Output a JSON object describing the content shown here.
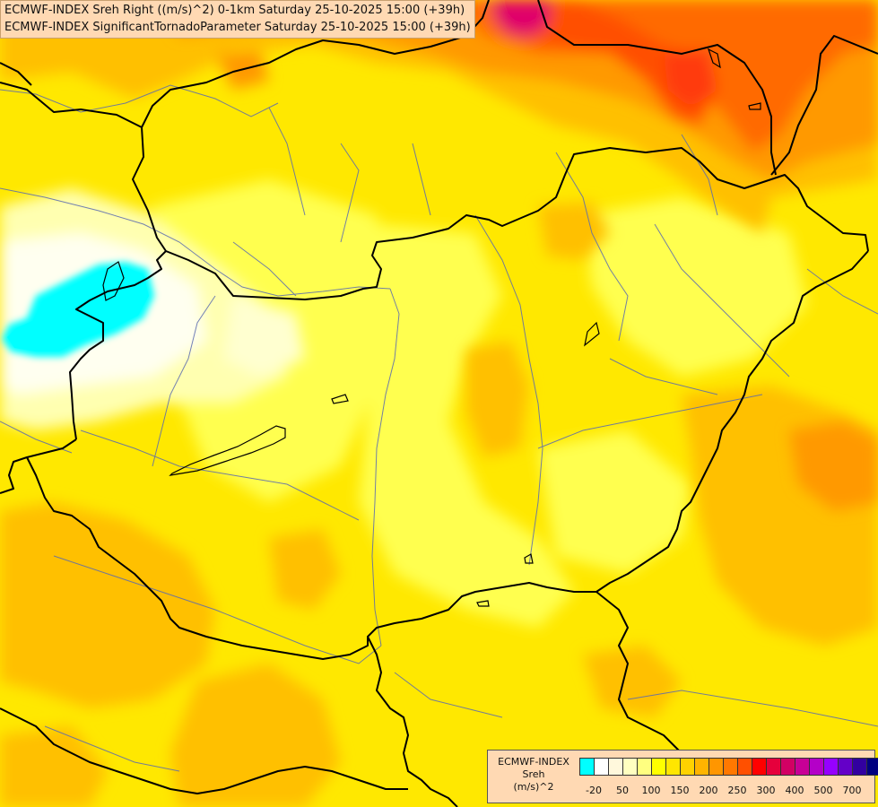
{
  "header": {
    "line1": "ECMWF-INDEX Sreh Right ((m/s)^2) 0-1km Saturday 25-10-2025 15:00 (+39h)",
    "line2": "ECMWF-INDEX SignificantTornadoParameter Saturday 25-10-2025 15:00 (+39h)"
  },
  "legend": {
    "line1": "ECMWF-INDEX",
    "line2": "Sreh",
    "line3": "(m/s)^2",
    "colors": [
      "#00ffff",
      "#ffffff",
      "#fff8dc",
      "#ffffc0",
      "#ffff80",
      "#ffff00",
      "#ffe600",
      "#ffd200",
      "#ffb400",
      "#ff9600",
      "#ff7800",
      "#ff5000",
      "#ff0000",
      "#e6003c",
      "#d20064",
      "#c80096",
      "#b400c8",
      "#9600ff",
      "#6400c8",
      "#3200a0",
      "#000080"
    ],
    "ticks": [
      "-20",
      "50",
      "100",
      "150",
      "200",
      "250",
      "300",
      "400",
      "500",
      "700"
    ]
  },
  "map": {
    "colors": {
      "base": "#ffe800",
      "light_yellow": "#ffff60",
      "pale": "#ffffc8",
      "white": "#fffff0",
      "cyan": "#00ffff",
      "amber": "#ffc000",
      "orange": "#ff9900",
      "dark_orange": "#ff6a00",
      "red_orange": "#ff4000",
      "magenta": "#e0006a",
      "border": "#000000",
      "river": "#5a6ab0"
    }
  }
}
